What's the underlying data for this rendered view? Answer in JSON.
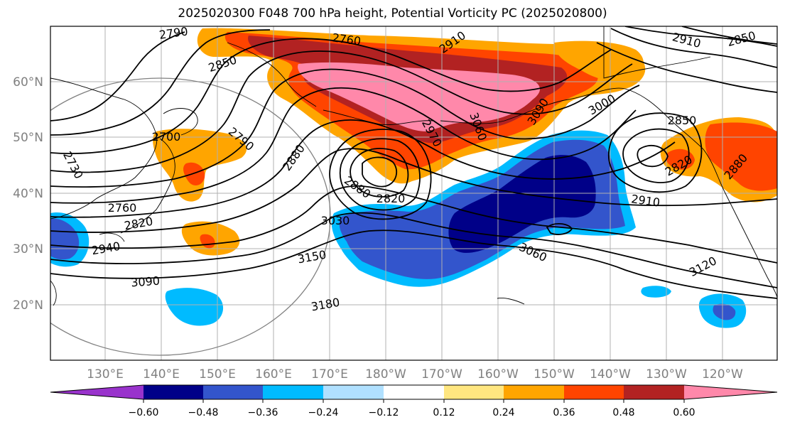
{
  "title": "2025020300 F048 700 hPa height, Potential Vorticity PC (2025020800)",
  "map": {
    "lat_labels": [
      "60°N",
      "50°N",
      "40°N",
      "30°N",
      "20°N"
    ],
    "lon_labels": [
      "130°E",
      "140°E",
      "150°E",
      "160°E",
      "170°E",
      "180°W",
      "170°W",
      "160°W",
      "150°W",
      "140°W",
      "130°W",
      "120°W"
    ],
    "contour_labels": [
      "2790",
      "2760",
      "2910",
      "2910",
      "2850",
      "2850",
      "2700",
      "2790",
      "2730",
      "2880",
      "2970",
      "3060",
      "3090",
      "3000",
      "2850",
      "2820",
      "2880",
      "2760",
      "2820",
      "2940",
      "2880",
      "2820",
      "2910",
      "3030",
      "3150",
      "3060",
      "3090",
      "3120",
      "3180"
    ]
  },
  "colorbar": {
    "colors": [
      "#9933cc",
      "#000088",
      "#3355cc",
      "#00bbff",
      "#b0e0ff",
      "#ffffff",
      "#ffe680",
      "#ffa500",
      "#ff4400",
      "#b22222",
      "#ff88aa"
    ],
    "ticks": [
      "−0.60",
      "−0.48",
      "−0.36",
      "−0.24",
      "−0.12",
      "0.12",
      "0.24",
      "0.36",
      "0.48",
      "0.60"
    ]
  }
}
